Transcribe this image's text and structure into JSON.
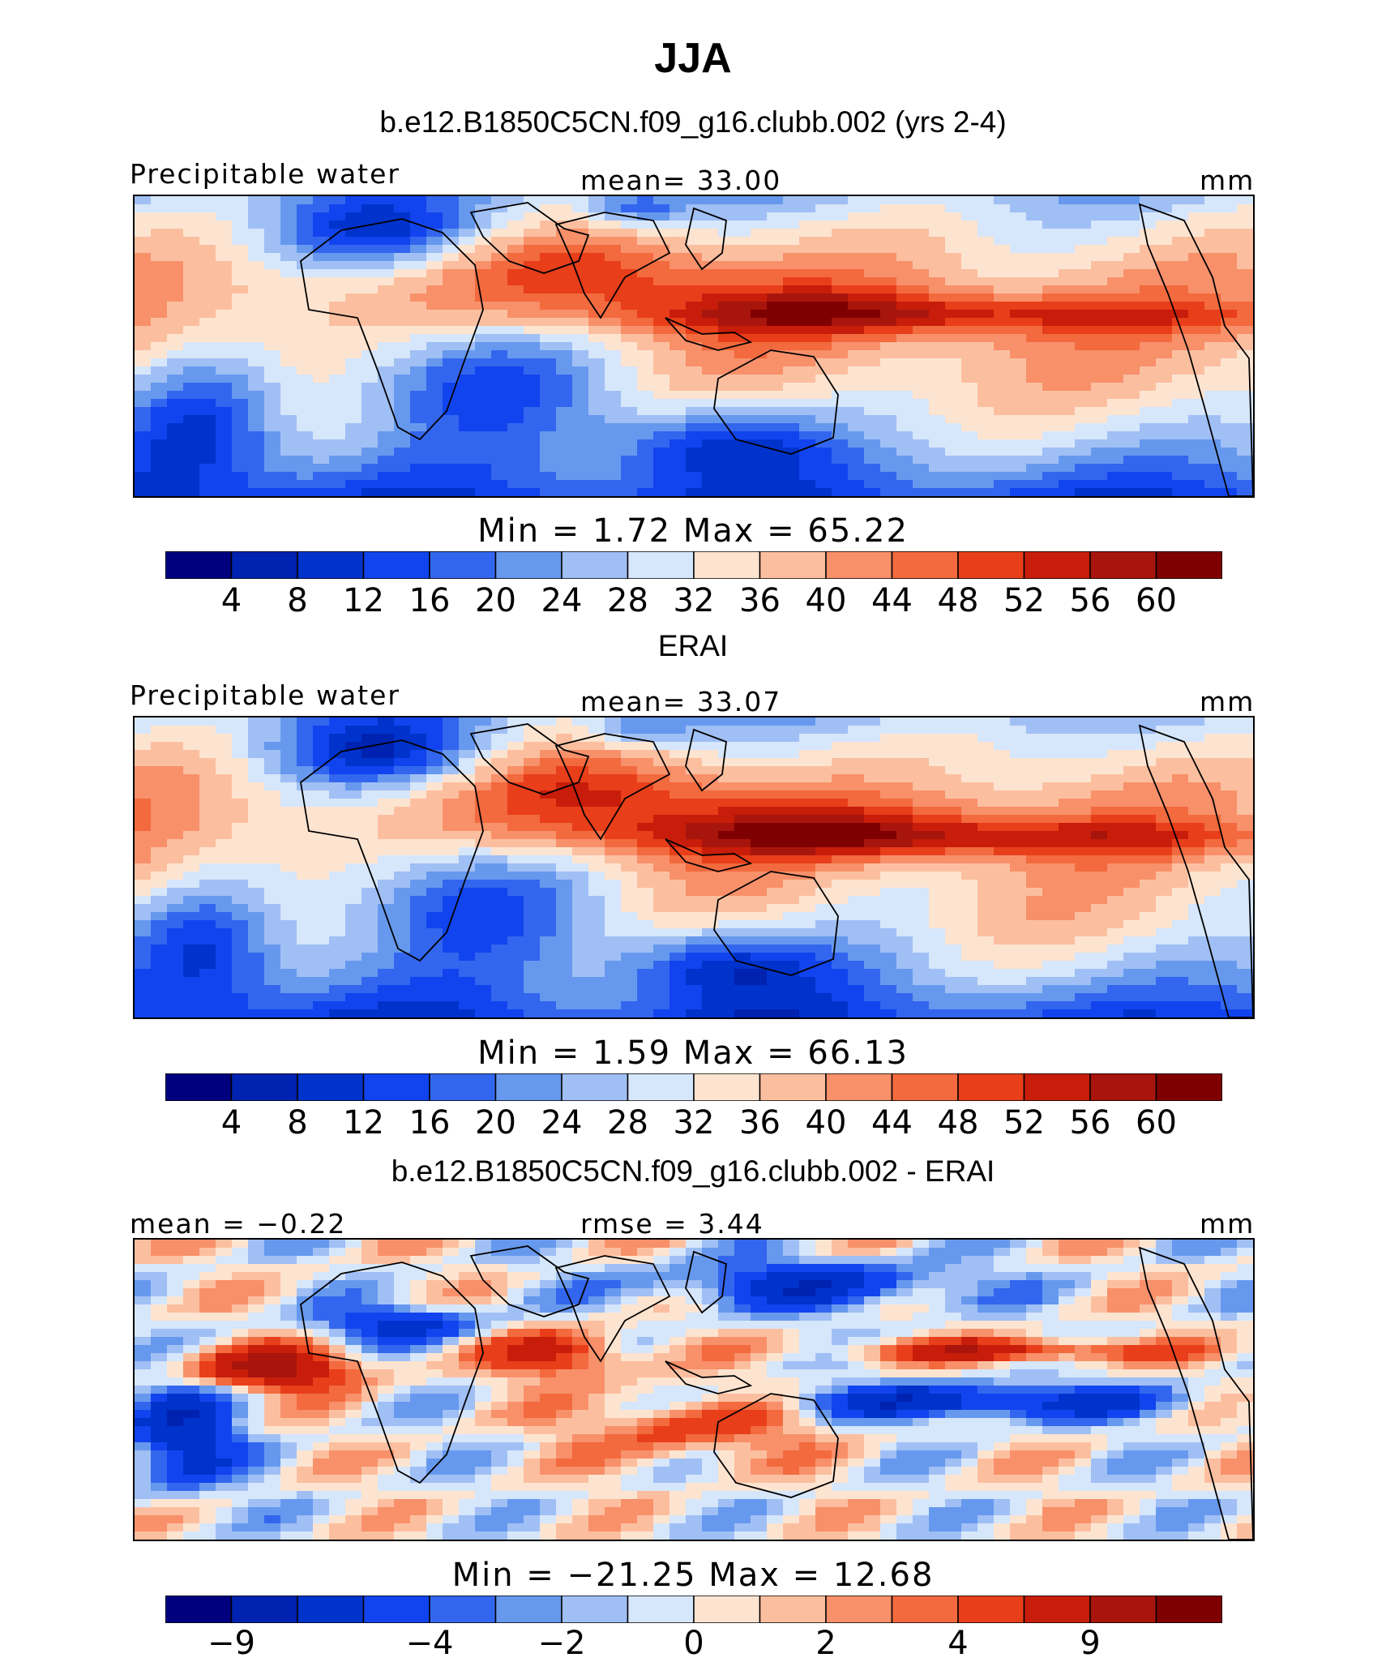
{
  "chart_data": {
    "type": "heatmap",
    "title": "JJA",
    "palette": [
      "#00007f",
      "#0022b0",
      "#0033cc",
      "#1144ee",
      "#3366ee",
      "#6699ee",
      "#a0bff5",
      "#d6e6fb",
      "#fde4d0",
      "#fbbfa0",
      "#f8906a",
      "#f26a3e",
      "#e83e1a",
      "#c81d0a",
      "#a8150c",
      "#7f0000"
    ],
    "panels": [
      {
        "title": "b.e12.B1850C5CN.f09_g16.clubb.002 (yrs 2-4)",
        "left_label": "Precipitable water",
        "center_label": "mean=   33.00",
        "units": "mm",
        "minmax": "Min  =     1.72  Max  =    65.22",
        "colorbar_ticks": [
          "4",
          "8",
          "12",
          "16",
          "20",
          "24",
          "28",
          "32",
          "36",
          "40",
          "44",
          "48",
          "52",
          "56",
          "60"
        ],
        "field": "model"
      },
      {
        "title": "ERAI",
        "left_label": "Precipitable water",
        "center_label": "mean=   33.07",
        "units": "mm",
        "minmax": "Min  =     1.59  Max  =    66.13",
        "colorbar_ticks": [
          "4",
          "8",
          "12",
          "16",
          "20",
          "24",
          "28",
          "32",
          "36",
          "40",
          "44",
          "48",
          "52",
          "56",
          "60"
        ],
        "field": "obs"
      },
      {
        "title": "b.e12.B1850C5CN.f09_g16.clubb.002 - ERAI",
        "left_label": "mean  =   −0.22",
        "center_label": "rmse  =     3.44",
        "units": "mm",
        "minmax": "Min  = −21.25  Max  =    12.68",
        "colorbar_ticks": [
          "−9",
          "−4",
          "−2",
          "0",
          "2",
          "4",
          "9"
        ],
        "field": "diff"
      }
    ]
  }
}
